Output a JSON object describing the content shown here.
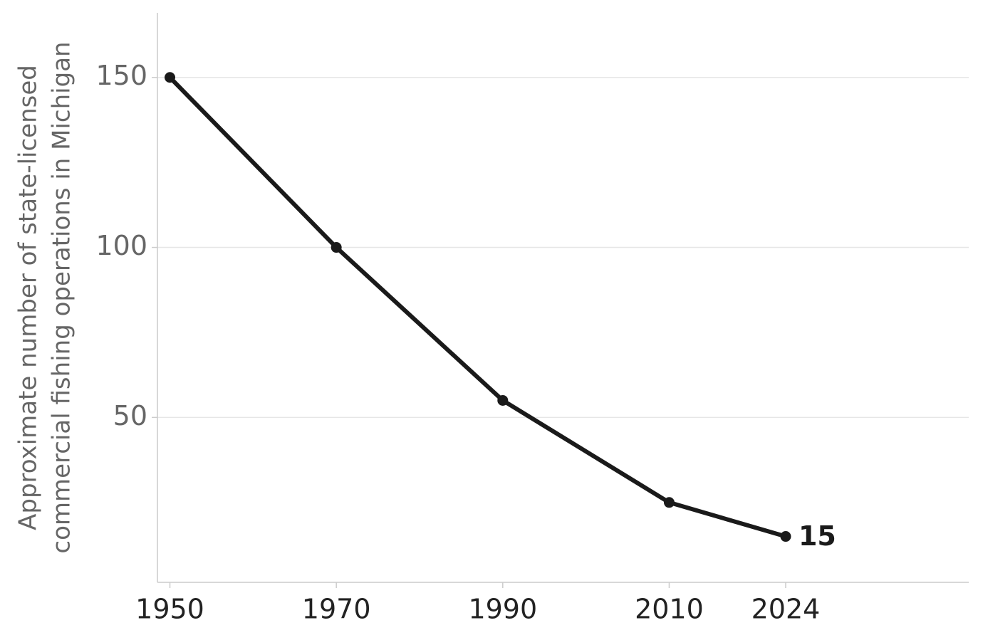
{
  "chart_data": {
    "type": "line",
    "ylabel": [
      "Approximate number of state-licensed",
      "commercial fishing operations in Michigan"
    ],
    "x": [
      1950,
      1970,
      1990,
      2010,
      2024
    ],
    "series": [
      {
        "color": "#1a1a1a",
        "values": [
          150,
          100,
          55,
          25,
          15
        ]
      }
    ],
    "xlim": [
      1948.5,
      2046
    ],
    "ylim": [
      1.5,
      169
    ],
    "xticks": [
      1950,
      1970,
      1990,
      2010,
      2024
    ],
    "yticks": [
      50,
      100,
      150
    ],
    "grid": true
  }
}
